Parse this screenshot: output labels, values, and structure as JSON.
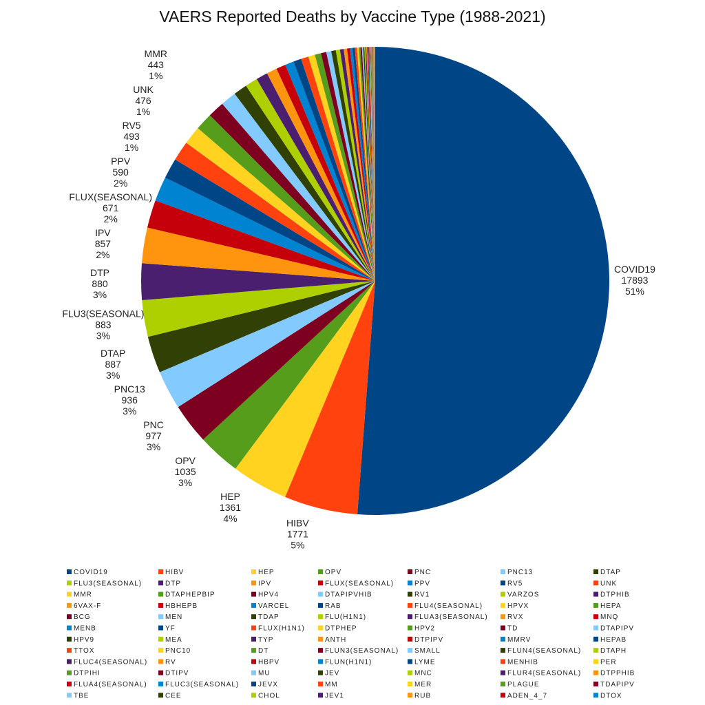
{
  "chart_data": {
    "type": "pie",
    "title": "VAERS Reported Deaths by Vaccine Type (1988-2021)",
    "start": "top",
    "direction": "clockwise",
    "legend_placement": "bottom",
    "palette": [
      "#004586",
      "#ff420e",
      "#ffd320",
      "#579d1c",
      "#7e0021",
      "#83caff",
      "#314004",
      "#aecf00",
      "#4b1f6f",
      "#ff950e",
      "#c5000b",
      "#0084d1"
    ],
    "labeled": [
      {
        "name": "COVID19",
        "value": 17893,
        "pct": "51%"
      },
      {
        "name": "HIBV",
        "value": 1771,
        "pct": "5%"
      },
      {
        "name": "HEP",
        "value": 1361,
        "pct": "4%"
      },
      {
        "name": "OPV",
        "value": 1035,
        "pct": "3%"
      },
      {
        "name": "PNC",
        "value": 977,
        "pct": "3%"
      },
      {
        "name": "PNC13",
        "value": 936,
        "pct": "3%"
      },
      {
        "name": "DTAP",
        "value": 887,
        "pct": "3%"
      },
      {
        "name": "FLU3(SEASONAL)",
        "value": 883,
        "pct": "3%"
      },
      {
        "name": "DTP",
        "value": 880,
        "pct": "3%"
      },
      {
        "name": "IPV",
        "value": 857,
        "pct": "2%"
      },
      {
        "name": "FLUX(SEASONAL)",
        "value": 671,
        "pct": "2%"
      },
      {
        "name": "PPV",
        "value": 590,
        "pct": "2%"
      },
      {
        "name": "RV5",
        "value": 493,
        "pct": "1%"
      },
      {
        "name": "UNK",
        "value": 476,
        "pct": "1%"
      },
      {
        "name": "MMR",
        "value": 443,
        "pct": "1%"
      }
    ],
    "unlabeled": [
      {
        "name": "DTAPHEPBIP",
        "value": 420
      },
      {
        "name": "HPV4",
        "value": 400
      },
      {
        "name": "DTAPIPVHIB",
        "value": 380
      },
      {
        "name": "RV1",
        "value": 330
      },
      {
        "name": "VARZOS",
        "value": 300
      },
      {
        "name": "DTPHIB",
        "value": 280
      },
      {
        "name": "6VAX-F",
        "value": 250
      },
      {
        "name": "HBHEPB",
        "value": 230
      },
      {
        "name": "VARCEL",
        "value": 210
      },
      {
        "name": "RAB",
        "value": 190
      },
      {
        "name": "FLU4(SEASONAL)",
        "value": 180
      },
      {
        "name": "HPVX",
        "value": 160
      },
      {
        "name": "HEPA",
        "value": 150
      },
      {
        "name": "BCG",
        "value": 130
      },
      {
        "name": "MEN",
        "value": 120
      },
      {
        "name": "TDAP",
        "value": 110
      },
      {
        "name": "FLU(H1N1)",
        "value": 100
      },
      {
        "name": "FLUA3(SEASONAL)",
        "value": 90
      },
      {
        "name": "RVX",
        "value": 80
      },
      {
        "name": "MNQ",
        "value": 70
      },
      {
        "name": "MENB",
        "value": 60
      },
      {
        "name": "YF",
        "value": 55
      },
      {
        "name": "FLUX(H1N1)",
        "value": 50
      },
      {
        "name": "DTPHEP",
        "value": 45
      },
      {
        "name": "HPV2",
        "value": 40
      },
      {
        "name": "TD",
        "value": 35
      },
      {
        "name": "DTAPIPV",
        "value": 30
      },
      {
        "name": "HPV9",
        "value": 28
      },
      {
        "name": "MEA",
        "value": 25
      },
      {
        "name": "TYP",
        "value": 22
      },
      {
        "name": "ANTH",
        "value": 20
      },
      {
        "name": "DTPIPV",
        "value": 18
      },
      {
        "name": "MMRV",
        "value": 16
      },
      {
        "name": "HEPAB",
        "value": 14
      },
      {
        "name": "TTOX",
        "value": 12
      },
      {
        "name": "PNC10",
        "value": 11
      },
      {
        "name": "DT",
        "value": 10
      },
      {
        "name": "FLUN3(SEASONAL)",
        "value": 9
      },
      {
        "name": "SMALL",
        "value": 8
      },
      {
        "name": "FLUN4(SEASONAL)",
        "value": 8
      },
      {
        "name": "DTAPH",
        "value": 7
      },
      {
        "name": "FLUC4(SEASONAL)",
        "value": 7
      },
      {
        "name": "RV",
        "value": 6
      },
      {
        "name": "HBPV",
        "value": 6
      },
      {
        "name": "FLUN(H1N1)",
        "value": 5
      },
      {
        "name": "LYME",
        "value": 5
      },
      {
        "name": "MENHIB",
        "value": 5
      },
      {
        "name": "PER",
        "value": 4
      },
      {
        "name": "DTPIHI",
        "value": 4
      },
      {
        "name": "DTIPV",
        "value": 4
      },
      {
        "name": "MU",
        "value": 3
      },
      {
        "name": "JEV",
        "value": 3
      },
      {
        "name": "MNC",
        "value": 3
      },
      {
        "name": "FLUR4(SEASONAL)",
        "value": 3
      },
      {
        "name": "DTPPHIB",
        "value": 2
      },
      {
        "name": "FLUA4(SEASONAL)",
        "value": 2
      },
      {
        "name": "FLUC3(SEASONAL)",
        "value": 2
      },
      {
        "name": "JEVX",
        "value": 2
      },
      {
        "name": "MM",
        "value": 2
      },
      {
        "name": "MER",
        "value": 2
      },
      {
        "name": "PLAGUE",
        "value": 1
      },
      {
        "name": "TDAPIPV",
        "value": 1
      },
      {
        "name": "TBE",
        "value": 1
      },
      {
        "name": "CEE",
        "value": 1
      },
      {
        "name": "CHOL",
        "value": 1
      },
      {
        "name": "JEV1",
        "value": 1
      },
      {
        "name": "RUB",
        "value": 1
      },
      {
        "name": "ADEN_4_7",
        "value": 1
      },
      {
        "name": "DTOX",
        "value": 1
      }
    ]
  }
}
